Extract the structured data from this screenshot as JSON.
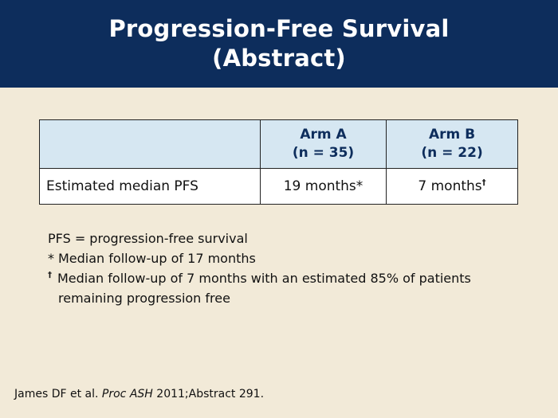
{
  "header": {
    "title_line1": "Progression-Free Survival",
    "title_line2": "(Abstract)"
  },
  "table": {
    "columns": [
      {
        "name": "Arm A",
        "n": "(n = 35)"
      },
      {
        "name": "Arm B",
        "n": "(n = 22)"
      }
    ],
    "row": {
      "label": "Estimated median PFS",
      "arm_a": "19 months*",
      "arm_b": "7 months",
      "arm_b_mark": "†"
    }
  },
  "notes": {
    "abbrev": "PFS = progression-free survival",
    "star_mark": "*",
    "star_text": "Median follow-up of 17 months",
    "dagger_mark": "†",
    "dagger_text_line1": "Median follow-up of 7 months with an estimated 85% of patients",
    "dagger_text_line2": "remaining progression free"
  },
  "citation": {
    "authors": "James DF et al.",
    "journal": "Proc ASH",
    "detail": "2011;Abstract 291."
  },
  "colors": {
    "header_bg": "#0d2d5c",
    "page_bg": "#f2ead8",
    "table_header_bg": "#d6e7f2"
  }
}
